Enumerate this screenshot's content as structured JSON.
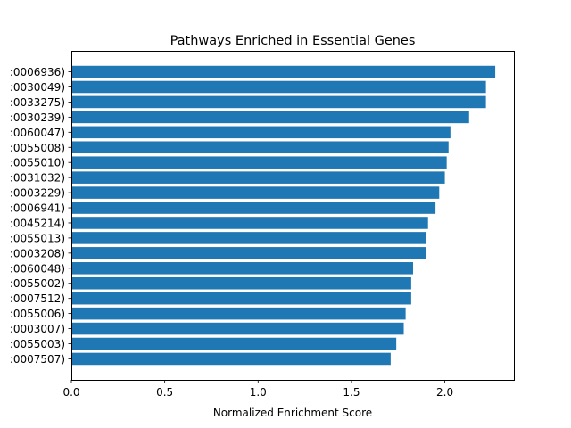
{
  "chart_data": {
    "type": "bar",
    "orientation": "horizontal",
    "title": "Pathways Enriched in Essential Genes",
    "xlabel": "Normalized Enrichment Score",
    "ylabel": "",
    "xlim": [
      0,
      2.37
    ],
    "xticks": [
      0.0,
      0.5,
      1.0,
      1.5,
      2.0
    ],
    "xtick_labels": [
      "0.0",
      "0.5",
      "1.0",
      "1.5",
      "2.0"
    ],
    "categories": [
      ":0006936)",
      ":0030049)",
      ":0033275)",
      ":0030239)",
      ":0060047)",
      ":0055008)",
      ":0055010)",
      ":0031032)",
      ":0003229)",
      ":0006941)",
      ":0045214)",
      ":0055013)",
      ":0003208)",
      ":0060048)",
      ":0055002)",
      ":0007512)",
      ":0055006)",
      ":0003007)",
      ":0055003)",
      ":0007507)"
    ],
    "values": [
      2.27,
      2.22,
      2.22,
      2.13,
      2.03,
      2.02,
      2.01,
      2.0,
      1.97,
      1.95,
      1.91,
      1.9,
      1.9,
      1.83,
      1.82,
      1.82,
      1.79,
      1.78,
      1.74,
      1.71
    ],
    "bar_color": "#1f77b4",
    "grid": false,
    "legend": "none"
  }
}
